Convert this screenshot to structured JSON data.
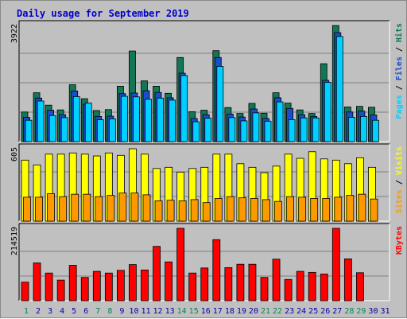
{
  "page": {
    "background": "#c0c0c0",
    "panel_background": "#c0c0c0",
    "gridline_color": "#808080"
  },
  "chart_data": {
    "type": "bar",
    "title": "Daily usage for September 2019",
    "categories": [
      "1",
      "2",
      "3",
      "4",
      "5",
      "6",
      "7",
      "8",
      "9",
      "10",
      "11",
      "12",
      "13",
      "14",
      "15",
      "16",
      "17",
      "18",
      "19",
      "20",
      "21",
      "22",
      "23",
      "24",
      "25",
      "26",
      "27",
      "28",
      "29",
      "30",
      "31"
    ],
    "weekend_days": [
      "1",
      "7",
      "8",
      "14",
      "15",
      "21",
      "22",
      "28",
      "29"
    ],
    "colors": {
      "title": "#0000cc",
      "hits": "#117755",
      "files": "#1a4ccc",
      "pages": "#00d0ff",
      "visits": "#ffff00",
      "sites": "#ff9900",
      "kbytes": "#ff0000",
      "weekday_label": "#0000aa",
      "weekend_label": "#008855"
    },
    "panels": [
      {
        "id": "hits-files-pages",
        "y_max_label": "3922",
        "y_max": 3922,
        "legend": [
          {
            "text": "Pages",
            "color": "#00d0ff"
          },
          {
            "text": " / ",
            "color": "#000000"
          },
          {
            "text": "Files",
            "color": "#1a4ccc"
          },
          {
            "text": " / ",
            "color": "#000000"
          },
          {
            "text": "Hits",
            "color": "#117755"
          }
        ],
        "series": [
          {
            "name": "Hits",
            "color": "#117755",
            "values": [
              1000,
              1650,
              1230,
              1070,
              1920,
              1450,
              1050,
              1080,
              1870,
              3060,
              2050,
              1870,
              1630,
              2840,
              1010,
              1060,
              3070,
              1150,
              950,
              1290,
              960,
              1650,
              1300,
              1070,
              950,
              2630,
              3920,
              1170,
              1190,
              1160,
              0
            ]
          },
          {
            "name": "Files",
            "color": "#1a4ccc",
            "values": [
              820,
              1470,
              1060,
              910,
              1710,
              1260,
              850,
              860,
              1620,
              1640,
              1720,
              1660,
              1480,
              2310,
              780,
              910,
              2840,
              930,
              830,
              1100,
              780,
              1480,
              1120,
              910,
              850,
              2070,
              3680,
              1000,
              1030,
              900,
              0
            ]
          },
          {
            "name": "Pages",
            "color": "#00d0ff",
            "values": [
              720,
              1370,
              880,
              810,
              1520,
              1300,
              740,
              770,
              1530,
              1510,
              1430,
              1470,
              1400,
              2230,
              670,
              790,
              2540,
              810,
              700,
              970,
              690,
              1340,
              740,
              800,
              800,
              2000,
              3550,
              820,
              850,
              720,
              0
            ]
          }
        ]
      },
      {
        "id": "visits-sites",
        "y_max_label": "605",
        "y_max": 605,
        "legend": [
          {
            "text": "Sites",
            "color": "#ff9900"
          },
          {
            "text": " / ",
            "color": "#000000"
          },
          {
            "text": "Visits",
            "color": "#ffff00"
          }
        ],
        "series": [
          {
            "name": "Visits",
            "color": "#ffff00",
            "values": [
              510,
              470,
              560,
              560,
              570,
              560,
              545,
              570,
              550,
              605,
              560,
              440,
              450,
              410,
              440,
              450,
              560,
              560,
              480,
              450,
              405,
              460,
              560,
              525,
              580,
              520,
              510,
              480,
              530,
              450,
              0
            ]
          },
          {
            "name": "Sites",
            "color": "#ff9900",
            "values": [
              200,
              200,
              230,
              205,
              225,
              225,
              205,
              215,
              235,
              235,
              220,
              170,
              175,
              170,
              180,
              155,
              190,
              205,
              195,
              190,
              180,
              165,
              205,
              200,
              190,
              190,
              200,
              215,
              225,
              185,
              0
            ]
          }
        ]
      },
      {
        "id": "kbytes",
        "y_max_label": "214519",
        "y_max": 214519,
        "legend": [
          {
            "text": "KBytes",
            "color": "#ff0000"
          }
        ],
        "series": [
          {
            "name": "KBytes",
            "color": "#ff0000",
            "values": [
              55000,
              112000,
              82000,
              61000,
              105000,
              69000,
              87000,
              82000,
              90000,
              107000,
              91000,
              161000,
              115000,
              214519,
              82000,
              97000,
              181000,
              98000,
              108000,
              108000,
              69000,
              123000,
              63000,
              87000,
              84000,
              79000,
              214519,
              124000,
              83000,
              0,
              0
            ]
          }
        ]
      }
    ]
  }
}
